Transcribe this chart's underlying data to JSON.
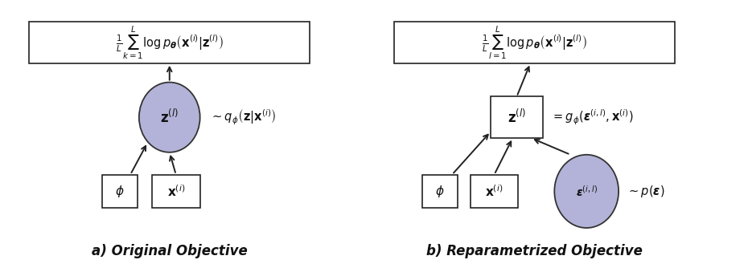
{
  "bg_color": "#ffffff",
  "node_fill_circle": "#b3b3d9",
  "node_fill_circle_edge": "#333333",
  "node_fill_rect": "#ffffff",
  "node_edge_color": "#222222",
  "arrow_color": "#222222",
  "text_color": "#111111",
  "label_a": "a) Original Objective",
  "label_b": "b) Reparametrized Objective",
  "math_top_a": "$\\frac{1}{L}\\sum_{k=1}^{L} \\log p_{\\boldsymbol{\\theta}}\\left(\\mathbf{x}^{(i)}|\\mathbf{z}^{(l)}\\right)$",
  "math_top_b": "$\\frac{1}{L}\\sum_{l=1}^{L} \\log p_{\\boldsymbol{\\theta}}\\left(\\mathbf{x}^{(i)}|\\mathbf{z}^{(l)}\\right)$",
  "math_circle_a": "$\\mathbf{z}^{(l)}$",
  "math_circle_b": "$\\boldsymbol{\\epsilon}^{(i,l)}$",
  "math_box_phi_a": "$\\phi$",
  "math_box_x_a": "$\\mathbf{x}^{(i)}$",
  "math_box_phi_b": "$\\phi$",
  "math_box_x_b": "$\\mathbf{x}^{(i)}$",
  "math_box_z_b": "$\\mathbf{z}^{(l)}$",
  "annot_circle_a": "$\\sim q_{\\phi}\\left(\\mathbf{z}|\\mathbf{x}^{(i)}\\right)$",
  "annot_circle_b": "$\\sim p(\\boldsymbol{\\epsilon})$",
  "annot_box_z_b": "$= g_{\\phi}\\left(\\boldsymbol{\\epsilon}^{(i,l)}, \\mathbf{x}^{(i)}\\right)$"
}
